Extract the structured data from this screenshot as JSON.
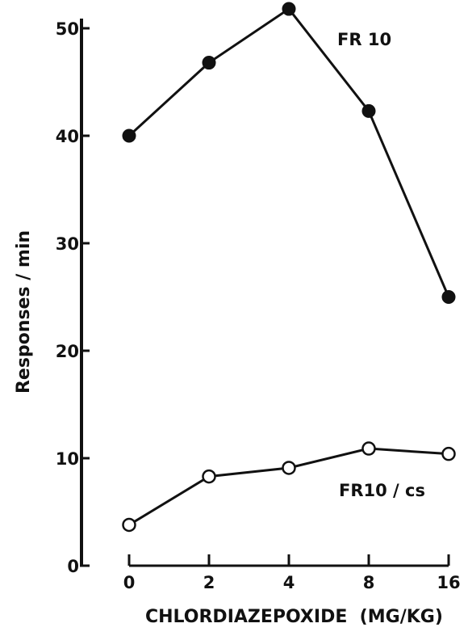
{
  "chart_data": {
    "type": "line",
    "x_categories": [
      "0",
      "2",
      "4",
      "8",
      "16"
    ],
    "xlabel": "CHLORDIAZEPOXIDE  (MG/KG)",
    "ylabel": "Responses / min",
    "ylim": [
      0,
      50
    ],
    "yticks": [
      "0",
      "10",
      "20",
      "30",
      "40",
      "50"
    ],
    "grid": false,
    "series": [
      {
        "name": "FR 10",
        "marker": "filled-circle",
        "values": [
          40,
          46.8,
          51.8,
          42.3,
          25
        ]
      },
      {
        "name": "FR10 / cs",
        "marker": "open-circle",
        "values": [
          3.8,
          8.3,
          9.1,
          10.9,
          10.4
        ]
      }
    ]
  },
  "colors": {
    "ink": "#111111",
    "background": "#ffffff"
  }
}
